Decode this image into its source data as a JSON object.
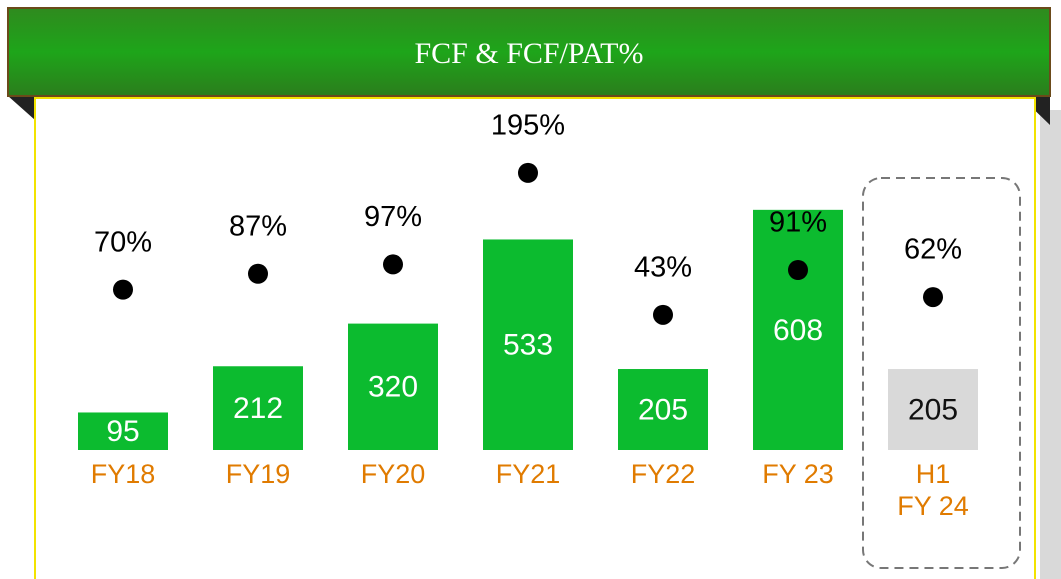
{
  "chart_data": {
    "type": "bar",
    "title": "FCF & FCF/PAT%",
    "categories": [
      "FY18",
      "FY19",
      "FY20",
      "FY21",
      "FY22",
      "FY 23",
      "H1\nFY 24"
    ],
    "series": [
      {
        "type": "bar",
        "colors": [
          "#0cbb2f",
          "#0cbb2f",
          "#0cbb2f",
          "#0cbb2f",
          "#0cbb2f",
          "#0cbb2f",
          "#d9d9d9"
        ],
        "values": [
          95,
          212,
          320,
          533,
          205,
          608,
          205
        ]
      },
      {
        "type": "scatter",
        "axis": "y2",
        "color": "#000000",
        "values": [
          70,
          87,
          97,
          195,
          43,
          91,
          62
        ],
        "value_labels": [
          "70%",
          "87%",
          "97%",
          "195%",
          "43%",
          "91%",
          "62%"
        ]
      }
    ]
  }
}
